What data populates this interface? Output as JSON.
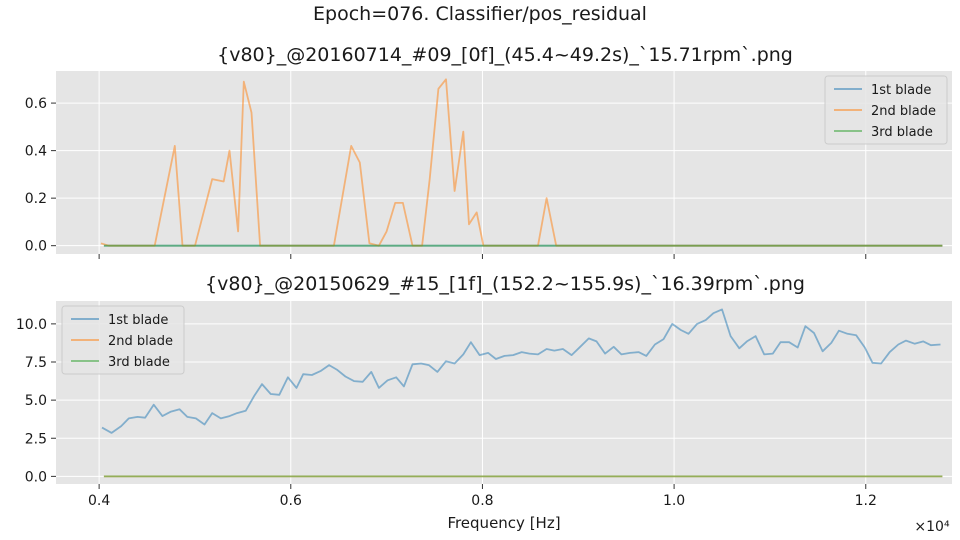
{
  "figure_title": "Epoch=076. Classifier/pos_residual",
  "x_offset_label": "×10⁴",
  "chart_data": [
    {
      "type": "line",
      "title": "{v80}_@20160714_#09_[0f]_(45.4~49.2s)_`15.71rpm`.png",
      "xlabel": "",
      "ylabel": "",
      "xlim": [
        3550,
        12900
      ],
      "ylim": [
        -0.035,
        0.735
      ],
      "xticks": [
        4000,
        6000,
        8000,
        10000,
        12000
      ],
      "xticklabels_visible": false,
      "yticks": [
        0.0,
        0.2,
        0.4,
        0.6
      ],
      "yticklabels": [
        "0.0",
        "0.2",
        "0.4",
        "0.6"
      ],
      "grid": true,
      "legend_position": "upper right",
      "series": [
        {
          "name": "1st blade",
          "color": "#1f77b4",
          "x": [
            4050,
            12800
          ],
          "y": [
            0,
            0
          ]
        },
        {
          "name": "2nd blade",
          "color": "#ff7f0e",
          "x": [
            4020,
            4100,
            4580,
            4790,
            4870,
            5000,
            5180,
            5300,
            5360,
            5450,
            5510,
            5590,
            5680,
            5770,
            6450,
            6630,
            6720,
            6820,
            6920,
            7000,
            7090,
            7170,
            7270,
            7370,
            7450,
            7540,
            7620,
            7710,
            7800,
            7860,
            7940,
            8010,
            8110,
            8580,
            8670,
            8770,
            12800
          ],
          "y": [
            0.01,
            0,
            0,
            0.42,
            0,
            0,
            0.28,
            0.27,
            0.4,
            0.06,
            0.69,
            0.56,
            0,
            0,
            0,
            0.42,
            0.35,
            0.01,
            0,
            0.06,
            0.18,
            0.18,
            0,
            0,
            0.28,
            0.66,
            0.7,
            0.23,
            0.48,
            0.09,
            0.14,
            0,
            0,
            0,
            0.2,
            0,
            0
          ]
        },
        {
          "name": "3rd blade",
          "color": "#2ca02c",
          "x": [
            4050,
            12800
          ],
          "y": [
            0,
            0
          ]
        }
      ]
    },
    {
      "type": "line",
      "title": "{v80}_@20150629_#15_[1f]_(152.2~155.9s)_`16.39rpm`.png",
      "xlabel": "Frequency [Hz]",
      "ylabel": "",
      "xlim": [
        3550,
        12900
      ],
      "ylim": [
        -0.5,
        11.5
      ],
      "xticks": [
        4000,
        6000,
        8000,
        10000,
        12000
      ],
      "xticklabels": [
        "0.4",
        "0.6",
        "0.8",
        "1.0",
        "1.2"
      ],
      "yticks": [
        0.0,
        2.5,
        5.0,
        7.5,
        10.0
      ],
      "yticklabels": [
        "0.0",
        "2.5",
        "5.0",
        "7.5",
        "10.0"
      ],
      "grid": true,
      "legend_position": "upper left",
      "series": [
        {
          "name": "1st blade",
          "color": "#1f77b4",
          "x": [
            4030,
            4130,
            4230,
            4310,
            4400,
            4480,
            4570,
            4660,
            4750,
            4840,
            4920,
            5010,
            5100,
            5180,
            5270,
            5360,
            5440,
            5530,
            5620,
            5700,
            5790,
            5880,
            5970,
            6060,
            6130,
            6220,
            6310,
            6400,
            6480,
            6570,
            6660,
            6750,
            6840,
            6920,
            7010,
            7100,
            7180,
            7270,
            7360,
            7440,
            7530,
            7620,
            7710,
            7800,
            7880,
            7970,
            8060,
            8140,
            8230,
            8320,
            8410,
            8490,
            8580,
            8670,
            8750,
            8840,
            8930,
            9020,
            9110,
            9190,
            9280,
            9370,
            9450,
            9540,
            9630,
            9710,
            9800,
            9890,
            9980,
            10070,
            10150,
            10240,
            10330,
            10410,
            10500,
            10590,
            10680,
            10760,
            10850,
            10940,
            11030,
            11110,
            11200,
            11290,
            11370,
            11460,
            11550,
            11640,
            11720,
            11810,
            11900,
            11990,
            12070,
            12160,
            12250,
            12340,
            12420,
            12510,
            12600,
            12680,
            12780
          ],
          "y": [
            3.2,
            2.85,
            3.3,
            3.8,
            3.9,
            3.85,
            4.7,
            3.95,
            4.25,
            4.4,
            3.9,
            3.8,
            3.4,
            4.15,
            3.8,
            3.95,
            4.15,
            4.3,
            5.3,
            6.05,
            5.4,
            5.35,
            6.5,
            5.8,
            6.7,
            6.65,
            6.9,
            7.3,
            7.0,
            6.55,
            6.25,
            6.2,
            6.85,
            5.8,
            6.3,
            6.5,
            5.9,
            7.35,
            7.4,
            7.3,
            6.85,
            7.55,
            7.4,
            8.0,
            8.8,
            7.95,
            8.1,
            7.7,
            7.9,
            7.95,
            8.15,
            8.05,
            8.0,
            8.35,
            8.25,
            8.35,
            7.95,
            8.5,
            9.05,
            8.85,
            8.05,
            8.5,
            8.0,
            8.1,
            8.15,
            7.9,
            8.65,
            9.0,
            10.0,
            9.6,
            9.35,
            10.0,
            10.25,
            10.7,
            10.95,
            9.2,
            8.4,
            8.85,
            9.2,
            8.0,
            8.05,
            8.8,
            8.8,
            8.45,
            9.85,
            9.4,
            8.2,
            8.75,
            9.55,
            9.35,
            9.25,
            8.45,
            7.45,
            7.4,
            8.15,
            8.65,
            8.9,
            8.7,
            8.85,
            8.6,
            8.65
          ]
        },
        {
          "name": "2nd blade",
          "color": "#ff7f0e",
          "x": [
            4050,
            12800
          ],
          "y": [
            0,
            0
          ]
        },
        {
          "name": "3rd blade",
          "color": "#2ca02c",
          "x": [
            4050,
            12800
          ],
          "y": [
            0,
            0
          ]
        }
      ]
    }
  ]
}
